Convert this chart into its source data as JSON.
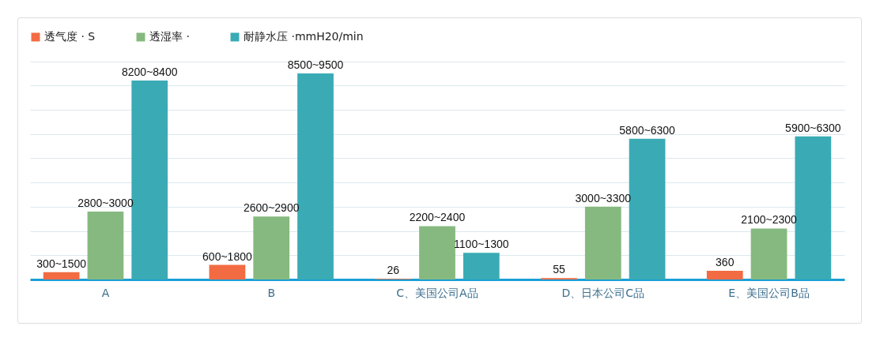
{
  "chart_data": {
    "type": "bar",
    "categories": [
      "A",
      "B",
      "C、美国公司A品",
      "D、日本公司C品",
      "E、美国公司B品"
    ],
    "series": [
      {
        "name": "透气度 · S",
        "color": "#f26b43",
        "values": [
          300,
          600,
          26,
          55,
          360
        ],
        "value_labels": [
          "300~1500",
          "600~1800",
          "26",
          "55",
          "360"
        ]
      },
      {
        "name": "透湿率 ·",
        "color": "#86b97f",
        "values": [
          2800,
          2600,
          2200,
          3000,
          2100
        ],
        "value_labels": [
          "2800~3000",
          "2600~2900",
          "2200~2400",
          "3000~3300",
          "2100~2300"
        ]
      },
      {
        "name": "耐静水压 ·mmH20/min",
        "color": "#3aabb5",
        "values": [
          8200,
          8500,
          1100,
          5800,
          5900
        ],
        "value_labels": [
          "8200~8400",
          "8500~9500",
          "1100~1300",
          "5800~6300",
          "5900~6300"
        ]
      }
    ],
    "grid": "y",
    "legend": "top"
  }
}
